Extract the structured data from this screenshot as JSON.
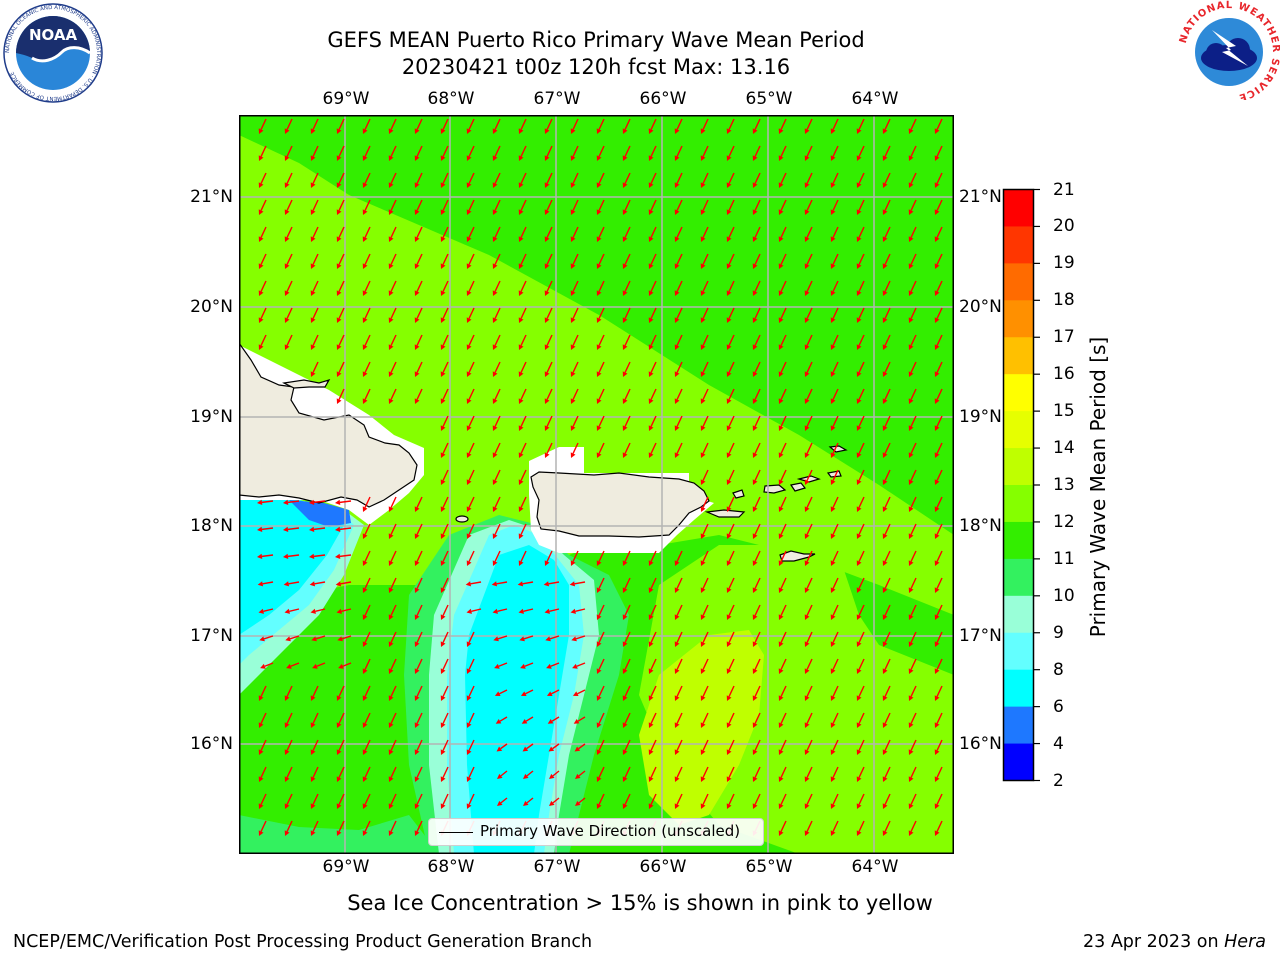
{
  "title": {
    "line1": "GEFS MEAN Puerto Rico Primary Wave Mean Period",
    "line2": "20230421 t00z 120h fcst   Max: 13.16"
  },
  "map": {
    "lon_ticks": [
      "69°W",
      "68°W",
      "67°W",
      "66°W",
      "65°W",
      "64°W"
    ],
    "lat_ticks": [
      "21°N",
      "20°N",
      "19°N",
      "18°N",
      "17°N",
      "16°N"
    ],
    "legend_label": "Primary Wave Direction (unscaled)",
    "land_color": "#efecdf",
    "arrow_color": "#ff0000",
    "grid_color": "#b4b4b4",
    "arrow_direction": "southwest (toward west in the southwest zone)"
  },
  "colorbar": {
    "label": "Primary Wave Mean Period [s]",
    "ticks": [
      "21",
      "20",
      "19",
      "18",
      "17",
      "16",
      "15",
      "14",
      "13",
      "12",
      "11",
      "10",
      "9",
      "8",
      "6",
      "4",
      "2"
    ],
    "colors": [
      "#ff0000",
      "#ff3600",
      "#ff6b00",
      "#ff9000",
      "#ffc000",
      "#ffff00",
      "#e6ff00",
      "#bfff00",
      "#85ff00",
      "#33ee00",
      "#33f15f",
      "#99ffd8",
      "#63ffff",
      "#00ffff",
      "#1e78ff",
      "#0000ff"
    ]
  },
  "subnote": "Sea Ice Concentration > 15% is shown in pink to yellow",
  "footer": {
    "left": "NCEP/EMC/Verification Post Processing Product Generation Branch",
    "right_prefix": "23 Apr 2023 on ",
    "right_host": "Hera"
  },
  "logos": {
    "noaa_text": "NOAA",
    "noaa_ring": "NATIONAL OCEANIC AND ATMOSPHERIC ADMINISTRATION · U.S. DEPARTMENT OF COMMERCE",
    "nws_ring": "NATIONAL WEATHER SERVICE"
  }
}
